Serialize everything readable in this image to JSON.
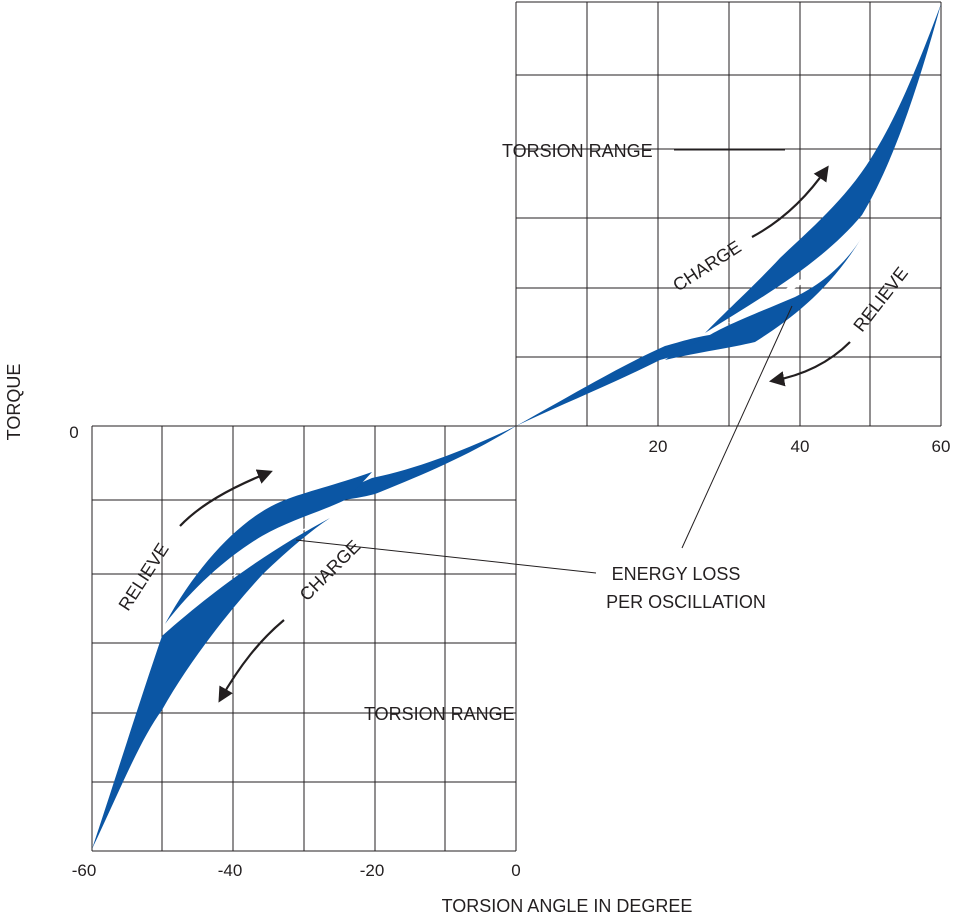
{
  "title": "",
  "axes": {
    "y_label": "TORQUE",
    "x_label": "TORSION ANGLE IN DEGREE",
    "y_origin_tick": "0",
    "x_ticks_upper": [
      "20",
      "40",
      "60"
    ],
    "x_ticks_lower": [
      "-60",
      "-40",
      "-20",
      "0"
    ]
  },
  "annotations": {
    "torsion_range_upper": "TORSION RANGE",
    "torsion_range_lower": "TORSION RANGE",
    "charge_upper": "CHARGE",
    "charge_lower": "CHARGE",
    "relieve_upper": "RELIEVE",
    "relieve_lower": "RELIEVE",
    "energy_loss_line1": "ENERGY LOSS",
    "energy_loss_line2": "PER OSCILLATION"
  },
  "colors": {
    "curve_fill": "#0b56a4",
    "ink": "#231f20",
    "background": "#ffffff"
  }
}
